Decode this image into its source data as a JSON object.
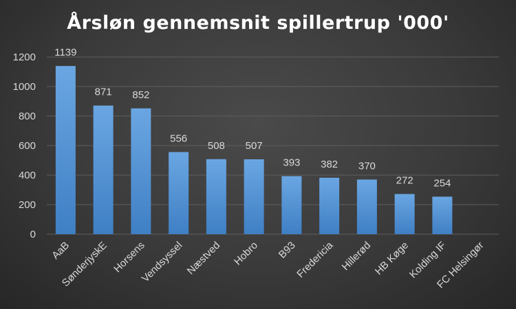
{
  "chart_data": {
    "type": "bar",
    "title": "Årsløn gennemsnit spillertrup '000'",
    "categories": [
      "AaB",
      "SønderjyskE",
      "Horsens",
      "Vendsyssel",
      "Næstved",
      "Hobro",
      "B93",
      "Fredericia",
      "Hillerød",
      "HB Køge",
      "Kolding IF",
      "FC Helsingør"
    ],
    "values": [
      1139,
      871,
      852,
      556,
      508,
      507,
      393,
      382,
      370,
      272,
      254,
      null
    ],
    "data_labels": [
      "1139",
      "871",
      "852",
      "556",
      "508",
      "507",
      "393",
      "382",
      "370",
      "272",
      "254",
      ""
    ],
    "ylim": [
      0,
      1200
    ],
    "yticks": [
      0,
      200,
      400,
      600,
      800,
      1000,
      1200
    ],
    "grid": true,
    "legend": "none",
    "bar_color_top": "#6aa6e2",
    "bar_color_bottom": "#3f7fc4",
    "gridline_color": "#5e5e5e",
    "text_color": "#d9d9d9"
  }
}
